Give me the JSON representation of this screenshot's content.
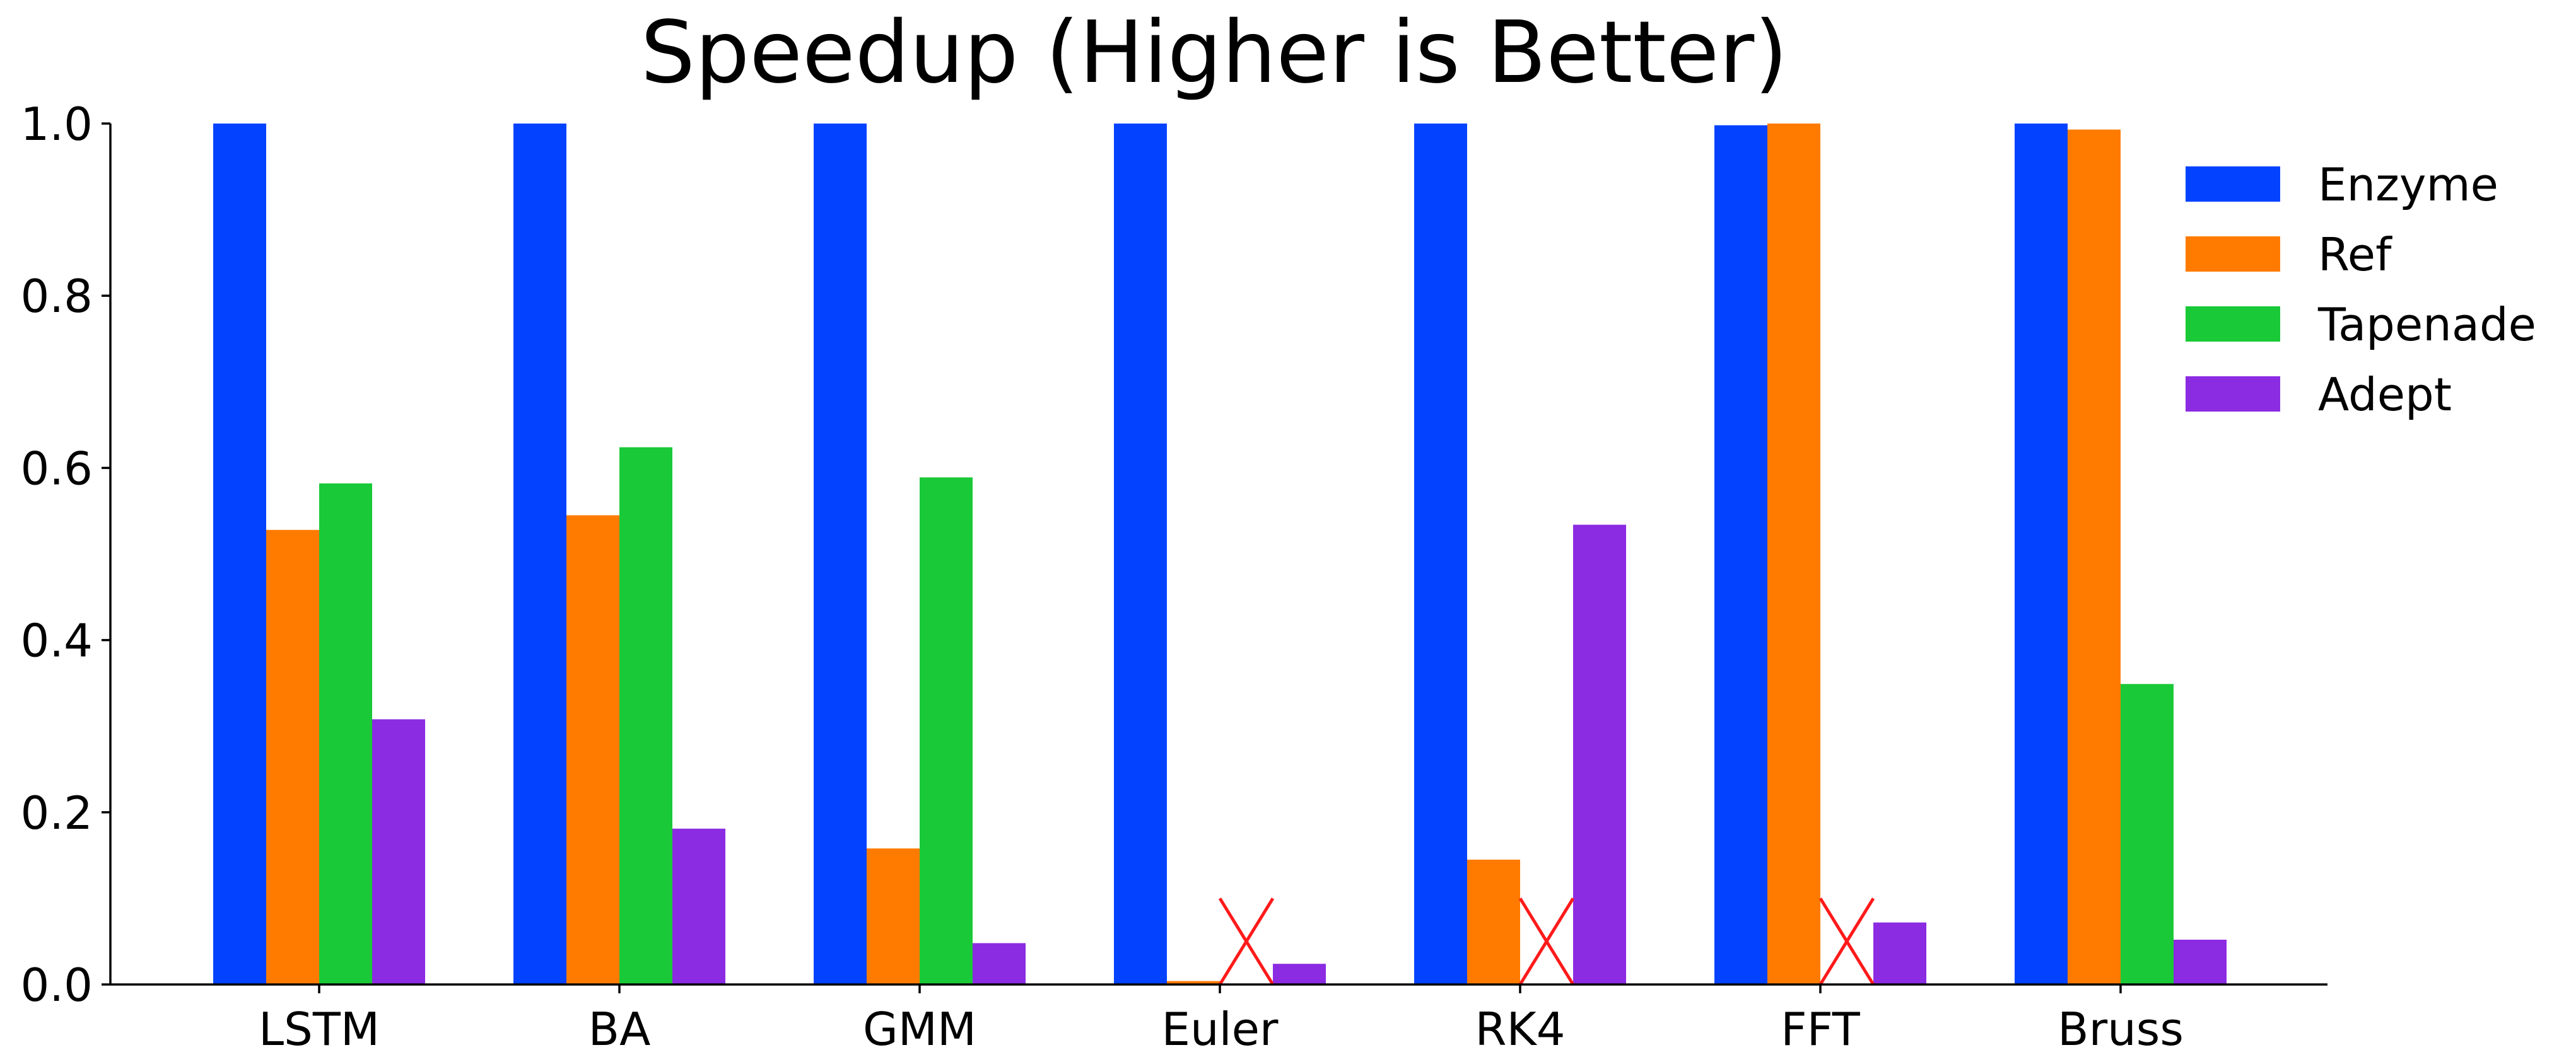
{
  "chart_data": {
    "type": "bar",
    "title": "Speedup (Higher is Better)",
    "xlabel": "",
    "ylabel": "",
    "ylim": [
      0.0,
      1.0
    ],
    "yticks": [
      "0.0",
      "0.2",
      "0.4",
      "0.6",
      "0.8",
      "1.0"
    ],
    "categories": [
      "LSTM",
      "BA",
      "GMM",
      "Euler",
      "RK4",
      "FFT",
      "Bruss"
    ],
    "series": [
      {
        "name": "Enzyme",
        "color": "#0343ff",
        "values": [
          1.0,
          1.0,
          1.0,
          1.0,
          1.0,
          0.998,
          1.0
        ]
      },
      {
        "name": "Ref",
        "color": "#ff7b00",
        "values": [
          0.528,
          0.545,
          0.158,
          0.004,
          0.145,
          1.0,
          0.993
        ]
      },
      {
        "name": "Tapenade",
        "color": "#1ac938",
        "values": [
          0.582,
          0.624,
          0.589,
          null,
          null,
          null,
          0.349
        ]
      },
      {
        "name": "Adept",
        "color": "#8b2be2",
        "values": [
          0.308,
          0.181,
          0.048,
          0.024,
          0.534,
          0.072,
          0.052
        ]
      }
    ],
    "unsupported_marker": {
      "series": "Tapenade",
      "symbol": "X",
      "color": "#ff1a1a",
      "categories": [
        "Euler",
        "RK4",
        "FFT"
      ]
    },
    "grid": false,
    "legend_position": "top-right"
  }
}
